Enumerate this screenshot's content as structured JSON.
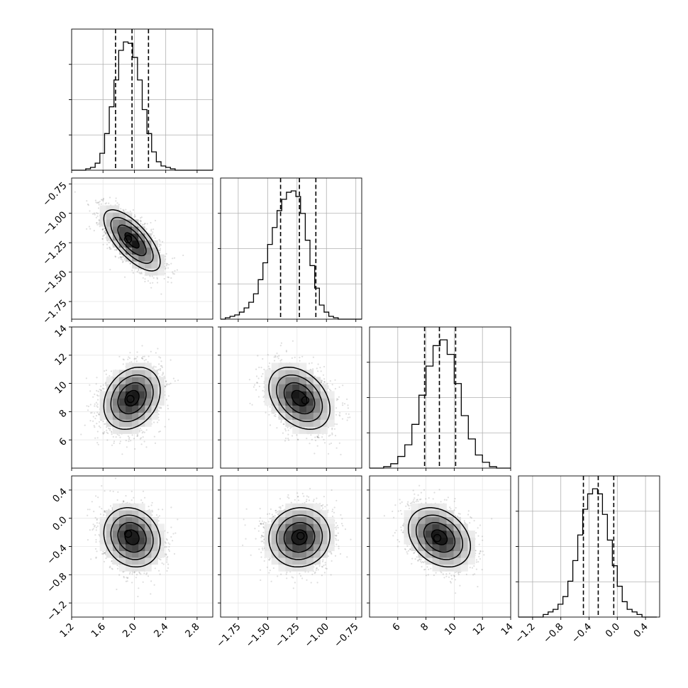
{
  "chart_data": {
    "type": "corner",
    "grid": true,
    "parameters": [
      {
        "index": 0,
        "range": [
          1.2,
          3.0
        ],
        "ticks": [
          "1.2",
          "1.6",
          "2.0",
          "2.4",
          "2.8"
        ],
        "tick_values": [
          1.2,
          1.6,
          2.0,
          2.4,
          2.8
        ],
        "quantiles": [
          1.76,
          1.97,
          2.18
        ],
        "histogram": {
          "bin_edges": [
            1.2,
            1.26,
            1.32,
            1.38,
            1.44,
            1.5,
            1.56,
            1.62,
            1.68,
            1.74,
            1.8,
            1.86,
            1.92,
            1.98,
            2.04,
            2.1,
            2.16,
            2.22,
            2.28,
            2.34,
            2.4,
            2.46,
            2.52,
            2.58,
            2.64,
            2.7,
            2.76,
            2.82,
            2.88,
            2.94,
            3.0
          ],
          "counts": [
            0,
            0,
            0,
            1,
            2,
            5,
            12,
            26,
            45,
            64,
            85,
            91,
            90,
            80,
            64,
            43,
            26,
            13,
            6,
            3,
            2,
            1,
            0,
            0,
            0,
            0,
            0,
            0,
            0,
            0
          ]
        }
      },
      {
        "index": 1,
        "range": [
          -1.9,
          -0.7
        ],
        "ticks": [
          "-1.75",
          "-1.50",
          "-1.25",
          "-1.00",
          "-0.75"
        ],
        "tick_values": [
          -1.75,
          -1.5,
          -1.25,
          -1.0,
          -0.75
        ],
        "quantiles": [
          -1.39,
          -1.23,
          -1.09
        ],
        "histogram": {
          "bin_edges": [
            -1.9,
            -1.86,
            -1.82,
            -1.78,
            -1.74,
            -1.7,
            -1.66,
            -1.62,
            -1.58,
            -1.54,
            -1.5,
            -1.46,
            -1.42,
            -1.38,
            -1.34,
            -1.3,
            -1.26,
            -1.22,
            -1.18,
            -1.14,
            -1.1,
            -1.06,
            -1.02,
            -0.98,
            -0.94,
            -0.9,
            -0.86,
            -0.82,
            -0.78,
            -0.74,
            -0.7
          ],
          "counts": [
            0,
            1,
            2,
            3,
            5,
            8,
            12,
            18,
            28,
            40,
            53,
            65,
            77,
            85,
            90,
            91,
            87,
            75,
            56,
            38,
            22,
            10,
            5,
            2,
            1,
            0,
            0,
            0,
            0,
            0
          ]
        }
      },
      {
        "index": 2,
        "range": [
          4.0,
          14.0
        ],
        "ticks": [
          "6",
          "8",
          "10",
          "12",
          "14"
        ],
        "tick_values": [
          6,
          8,
          10,
          12,
          14
        ],
        "quantiles": [
          7.9,
          8.95,
          10.1
        ],
        "histogram": {
          "bin_edges": [
            4.0,
            4.5,
            5.0,
            5.5,
            6.0,
            6.5,
            7.0,
            7.5,
            8.0,
            8.5,
            9.0,
            9.5,
            10.0,
            10.5,
            11.0,
            11.5,
            12.0,
            12.5,
            13.0,
            13.5,
            14.0
          ],
          "counts": [
            0,
            0,
            1,
            3,
            8,
            16,
            30,
            50,
            70,
            84,
            88,
            78,
            58,
            36,
            20,
            9,
            4,
            1,
            0,
            0
          ]
        }
      },
      {
        "index": 3,
        "range": [
          -1.4,
          0.6
        ],
        "ticks": [
          "-1.2",
          "-0.8",
          "-0.4",
          "0.0",
          "0.4"
        ],
        "tick_values": [
          -1.2,
          -0.8,
          -0.4,
          0.0,
          0.4
        ],
        "quantiles": [
          -0.48,
          -0.27,
          -0.05
        ],
        "histogram": {
          "bin_edges": [
            -1.4,
            -1.33,
            -1.26,
            -1.19,
            -1.12,
            -1.05,
            -0.98,
            -0.91,
            -0.84,
            -0.77,
            -0.7,
            -0.63,
            -0.56,
            -0.49,
            -0.42,
            -0.35,
            -0.28,
            -0.21,
            -0.14,
            -0.07,
            0.0,
            0.07,
            0.14,
            0.21,
            0.28,
            0.35,
            0.42,
            0.49,
            0.56
          ],
          "counts": [
            0,
            0,
            0,
            0,
            0,
            1,
            2,
            3,
            5,
            8,
            14,
            22,
            32,
            42,
            48,
            50,
            48,
            40,
            30,
            20,
            12,
            6,
            3,
            2,
            1,
            0,
            0,
            0
          ]
        }
      }
    ],
    "joint": [
      {
        "x": 0,
        "y": 1,
        "mean": [
          1.97,
          -1.23
        ],
        "sd": [
          0.18,
          0.13
        ],
        "rho": -0.7,
        "peak": [
          1.92,
          -1.22
        ]
      },
      {
        "x": 0,
        "y": 2,
        "mean": [
          1.97,
          8.95
        ],
        "sd": [
          0.18,
          1.1
        ],
        "rho": 0.25,
        "peak": [
          1.95,
          8.9
        ]
      },
      {
        "x": 1,
        "y": 2,
        "mean": [
          -1.23,
          8.95
        ],
        "sd": [
          0.13,
          1.1
        ],
        "rho": -0.35,
        "peak": [
          -1.18,
          8.8
        ]
      },
      {
        "x": 0,
        "y": 3,
        "mean": [
          1.97,
          -0.27
        ],
        "sd": [
          0.18,
          0.21
        ],
        "rho": -0.15,
        "peak": [
          1.92,
          -0.22
        ]
      },
      {
        "x": 1,
        "y": 3,
        "mean": [
          -1.23,
          -0.27
        ],
        "sd": [
          0.13,
          0.21
        ],
        "rho": 0.05,
        "peak": [
          -1.22,
          -0.25
        ]
      },
      {
        "x": 2,
        "y": 3,
        "mean": [
          8.95,
          -0.27
        ],
        "sd": [
          1.1,
          0.21
        ],
        "rho": -0.3,
        "peak": [
          8.8,
          -0.28
        ]
      }
    ]
  }
}
